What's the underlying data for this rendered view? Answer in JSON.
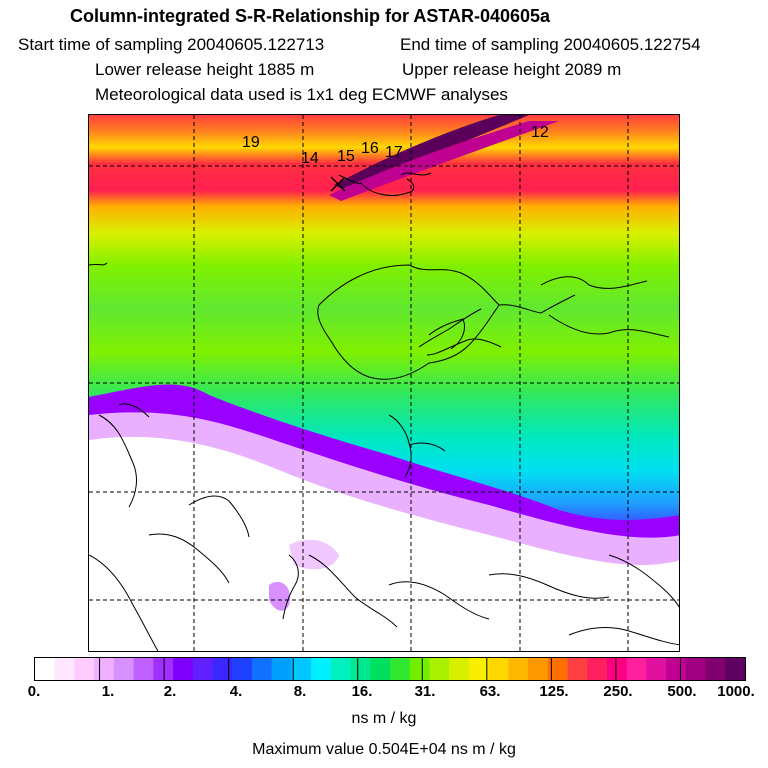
{
  "header": {
    "title": "Column-integrated S-R-Relationship for ASTAR-040605a",
    "start_sampling": "Start time of sampling 20040605.122713",
    "end_sampling": "End time of sampling 20040605.122754",
    "lower_release": "Lower release height 1885 m",
    "upper_release": "Upper release height 2089 m",
    "met_data": "Meteorological data used is 1x1 deg ECMWF analyses"
  },
  "map": {
    "track_labels": [
      "19",
      "14",
      "15",
      "16",
      "17",
      "12"
    ],
    "bands": [
      {
        "name": "dark-band",
        "color": "#5a005a"
      },
      {
        "name": "red-orange-band",
        "color": "#ff4040"
      },
      {
        "name": "yellow-band",
        "color": "#e8f000"
      },
      {
        "name": "green-band",
        "color": "#60e830"
      },
      {
        "name": "cyan-band",
        "color": "#00d8e0"
      },
      {
        "name": "violet-band",
        "color": "#9a00ff"
      },
      {
        "name": "white-area",
        "color": "#ffffff"
      }
    ]
  },
  "colorbar": {
    "colors": [
      "#ffffff",
      "#ffe6ff",
      "#ffccff",
      "#f0b0ff",
      "#d890ff",
      "#c060ff",
      "#a030ff",
      "#8000ff",
      "#6020ff",
      "#3c28ff",
      "#2040ff",
      "#1070ff",
      "#00a0ff",
      "#00c8ff",
      "#00f0ff",
      "#00f0c0",
      "#00e890",
      "#00e060",
      "#30e830",
      "#70f000",
      "#a8f000",
      "#d8f000",
      "#f8f000",
      "#ffd800",
      "#ffb800",
      "#ff9800",
      "#ff7000",
      "#ff4040",
      "#ff2060",
      "#ff0080",
      "#ff20a0",
      "#e010a0",
      "#c00090",
      "#a00080",
      "#800070",
      "#600060"
    ],
    "ticks": [
      "0.",
      "1.",
      "2.",
      "4.",
      "8.",
      "16.",
      "31.",
      "63.",
      "125.",
      "250.",
      "500.",
      "1000."
    ],
    "units": "ns m / kg",
    "max_value": "Maximum value  0.504E+04 ns m / kg"
  }
}
